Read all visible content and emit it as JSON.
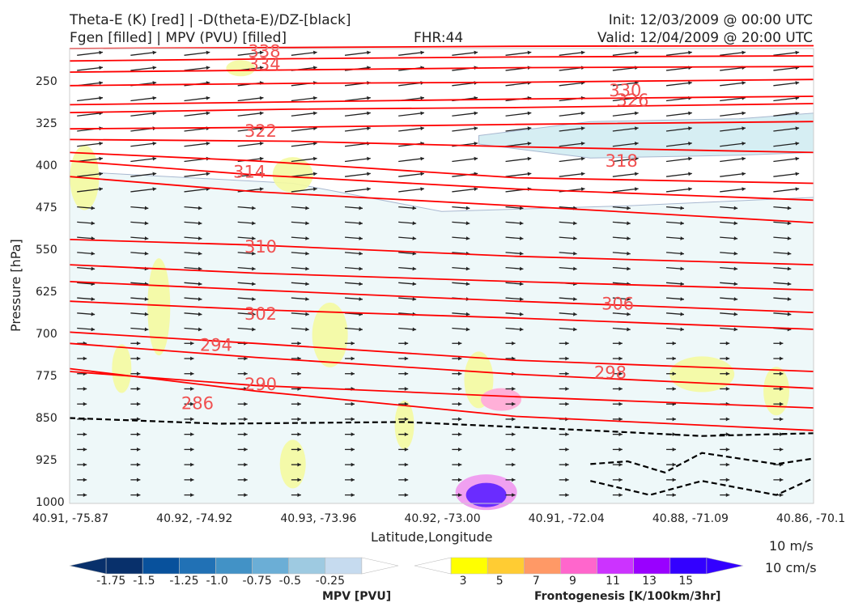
{
  "header": {
    "left_line1": "Theta-E (K) [red] | -D(theta-E)/DZ-[black]",
    "left_line2": "Fgen [filled] | MPV (PVU) [filled]",
    "fhr": "FHR:44",
    "init": "Init: 12/03/2009 @ 00:00 UTC",
    "valid": "Valid: 12/04/2009 @ 20:00 UTC"
  },
  "vector_key": {
    "line1": "10 m/s",
    "line2": "10 cm/s"
  },
  "chart_data": {
    "type": "cross-section",
    "title": "",
    "xlabel": "Latitude,Longitude",
    "ylabel": "Pressure [hPa]",
    "x_ticks": [
      "40.91, -75.87",
      "40.92, -74.92",
      "40.93, -73.96",
      "40.92, -73.00",
      "40.91, -72.04",
      "40.88, -71.09",
      "40.86, -70.1"
    ],
    "y_ticks": [
      250,
      325,
      400,
      475,
      550,
      625,
      700,
      775,
      850,
      925,
      1000
    ],
    "ylim": [
      1000,
      190
    ],
    "y_inverted": true,
    "theta_e_labels": [
      {
        "value": "338",
        "x": 0.24,
        "p": 195
      },
      {
        "value": "334",
        "x": 0.24,
        "p": 218
      },
      {
        "value": "330",
        "x": 0.725,
        "p": 265
      },
      {
        "value": "326",
        "x": 0.735,
        "p": 282
      },
      {
        "value": "322",
        "x": 0.235,
        "p": 337
      },
      {
        "value": "318",
        "x": 0.72,
        "p": 390
      },
      {
        "value": "314",
        "x": 0.22,
        "p": 410
      },
      {
        "value": "310",
        "x": 0.235,
        "p": 543
      },
      {
        "value": "306",
        "x": 0.715,
        "p": 645
      },
      {
        "value": "302",
        "x": 0.235,
        "p": 663
      },
      {
        "value": "298",
        "x": 0.705,
        "p": 767
      },
      {
        "value": "294",
        "x": 0.175,
        "p": 718
      },
      {
        "value": "290",
        "x": 0.235,
        "p": 788
      },
      {
        "value": "286",
        "x": 0.15,
        "p": 822
      }
    ],
    "theta_e_lines": [
      {
        "x": [
          0,
          0.3,
          0.6,
          1.0
        ],
        "p": [
          190,
          188,
          186,
          185
        ]
      },
      {
        "x": [
          0,
          0.3,
          0.6,
          1.0
        ],
        "p": [
          212,
          208,
          205,
          203
        ]
      },
      {
        "x": [
          0,
          0.3,
          0.6,
          1.0
        ],
        "p": [
          232,
          228,
          224,
          222
        ]
      },
      {
        "x": [
          0,
          0.3,
          0.6,
          1.0
        ],
        "p": [
          256,
          252,
          250,
          245
        ]
      },
      {
        "x": [
          0,
          0.3,
          0.6,
          1.0
        ],
        "p": [
          290,
          285,
          280,
          275
        ]
      },
      {
        "x": [
          0,
          0.3,
          0.6,
          1.0
        ],
        "p": [
          304,
          298,
          295,
          288
        ]
      },
      {
        "x": [
          0,
          0.3,
          0.6,
          1.0
        ],
        "p": [
          333,
          330,
          325,
          320
        ]
      },
      {
        "x": [
          0,
          0.3,
          0.6,
          1.0
        ],
        "p": [
          352,
          355,
          365,
          375
        ]
      },
      {
        "x": [
          0,
          0.25,
          0.6,
          1.0
        ],
        "p": [
          375,
          390,
          420,
          430
        ]
      },
      {
        "x": [
          0,
          0.25,
          0.6,
          1.0
        ],
        "p": [
          390,
          415,
          440,
          460
        ]
      },
      {
        "x": [
          0,
          0.25,
          0.6,
          1.0
        ],
        "p": [
          418,
          445,
          470,
          500
        ]
      },
      {
        "x": [
          0,
          0.25,
          0.6,
          1.0
        ],
        "p": [
          530,
          540,
          560,
          575
        ]
      },
      {
        "x": [
          0,
          0.25,
          0.6,
          1.0
        ],
        "p": [
          575,
          590,
          605,
          620
        ]
      },
      {
        "x": [
          0,
          0.25,
          0.6,
          1.0
        ],
        "p": [
          605,
          620,
          640,
          660
        ]
      },
      {
        "x": [
          0,
          0.25,
          0.6,
          1.0
        ],
        "p": [
          640,
          655,
          670,
          690
        ]
      },
      {
        "x": [
          0,
          0.25,
          0.6,
          1.0
        ],
        "p": [
          695,
          715,
          745,
          765
        ]
      },
      {
        "x": [
          0,
          0.25,
          0.6,
          1.0
        ],
        "p": [
          715,
          740,
          770,
          795
        ]
      },
      {
        "x": [
          0,
          0.25,
          0.6,
          1.0
        ],
        "p": [
          765,
          790,
          810,
          830
        ]
      },
      {
        "x": [
          0,
          0.25,
          0.6,
          1.0
        ],
        "p": [
          760,
          800,
          845,
          870
        ]
      }
    ],
    "stability_dashed": [
      {
        "x": [
          0,
          0.2,
          0.45,
          0.7,
          0.85,
          1.0
        ],
        "p": [
          848,
          858,
          855,
          870,
          880,
          875
        ]
      },
      {
        "x": [
          0.7,
          0.75,
          0.8,
          0.85,
          0.95,
          1.0
        ],
        "p": [
          930,
          925,
          945,
          910,
          930,
          920
        ]
      },
      {
        "x": [
          0.7,
          0.78,
          0.85,
          0.95,
          1.0
        ],
        "p": [
          960,
          985,
          960,
          985,
          955
        ]
      }
    ],
    "colorbar_mpv": {
      "title": "MPV [PVU]",
      "ticks": [
        "-1.75",
        "-1.5",
        "-1.25",
        "-1.0",
        "-0.75",
        "-0.5",
        "-0.25"
      ],
      "colors": [
        "#08306b",
        "#08306b",
        "#08519c",
        "#2171b5",
        "#4292c6",
        "#6baed6",
        "#9ecae1",
        "#c6dbef",
        "#ffffff"
      ]
    },
    "colorbar_fgen": {
      "title": "Frontogenesis [K/100km/3hr]",
      "ticks": [
        "3",
        "5",
        "7",
        "9",
        "11",
        "13",
        "15"
      ],
      "colors": [
        "#ffffff",
        "#ffff00",
        "#ffcc33",
        "#ff9966",
        "#ff66cc",
        "#cc33ff",
        "#9900ff",
        "#3300ff",
        "#3300ff"
      ]
    }
  }
}
